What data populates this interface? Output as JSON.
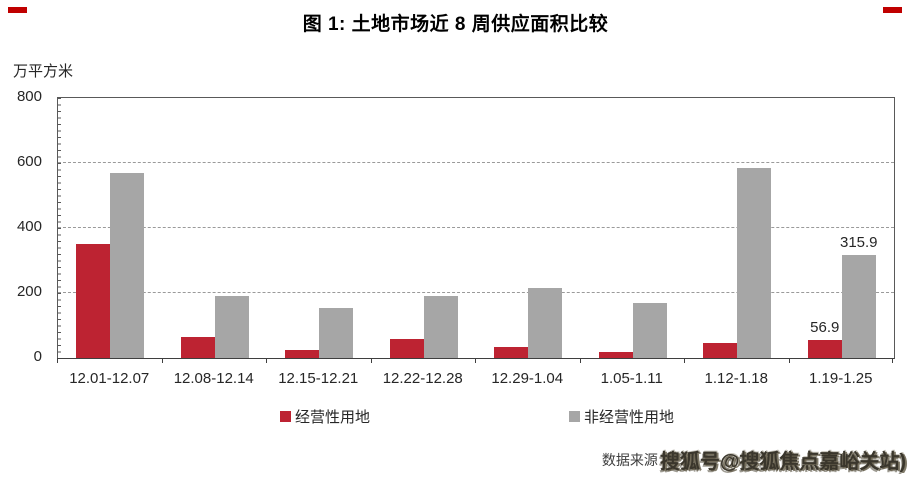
{
  "page_title": "图 1: 土地市场近 8 周供应面积比较",
  "chart_data": {
    "type": "bar",
    "title": "图 1: 土地市场近 8 周供应面积比较",
    "y_unit_label": "万平方米",
    "xlabel": "",
    "ylabel": "万平方米",
    "categories": [
      "12.01-12.07",
      "12.08-12.14",
      "12.15-12.21",
      "12.22-12.28",
      "12.29-1.04",
      "1.05-1.11",
      "1.12-1.18",
      "1.19-1.25"
    ],
    "series": [
      {
        "name": "经营性用地",
        "color": "#bd2332",
        "values": [
          350,
          65,
          25,
          60,
          35,
          20,
          45,
          56.9
        ]
      },
      {
        "name": "非经营性用地",
        "color": "#a6a6a6",
        "values": [
          570,
          190,
          155,
          190,
          215,
          170,
          585,
          315.9
        ]
      }
    ],
    "data_labels": [
      {
        "series": 0,
        "index": 7,
        "text": "56.9"
      },
      {
        "series": 1,
        "index": 7,
        "text": "315.9"
      }
    ],
    "ylim": [
      0,
      800
    ],
    "yticks": [
      0,
      200,
      400,
      600,
      800
    ],
    "grid": "horizontal-dashed",
    "legend_position": "bottom"
  },
  "footer": {
    "source_prefix": "数据来源",
    "watermark_text": "搜狐号@搜狐焦点嘉峪关站)"
  },
  "accents": {
    "corner_mark_color": "#c00000",
    "bar_red": "#bd2332",
    "bar_gray": "#a6a6a6"
  }
}
